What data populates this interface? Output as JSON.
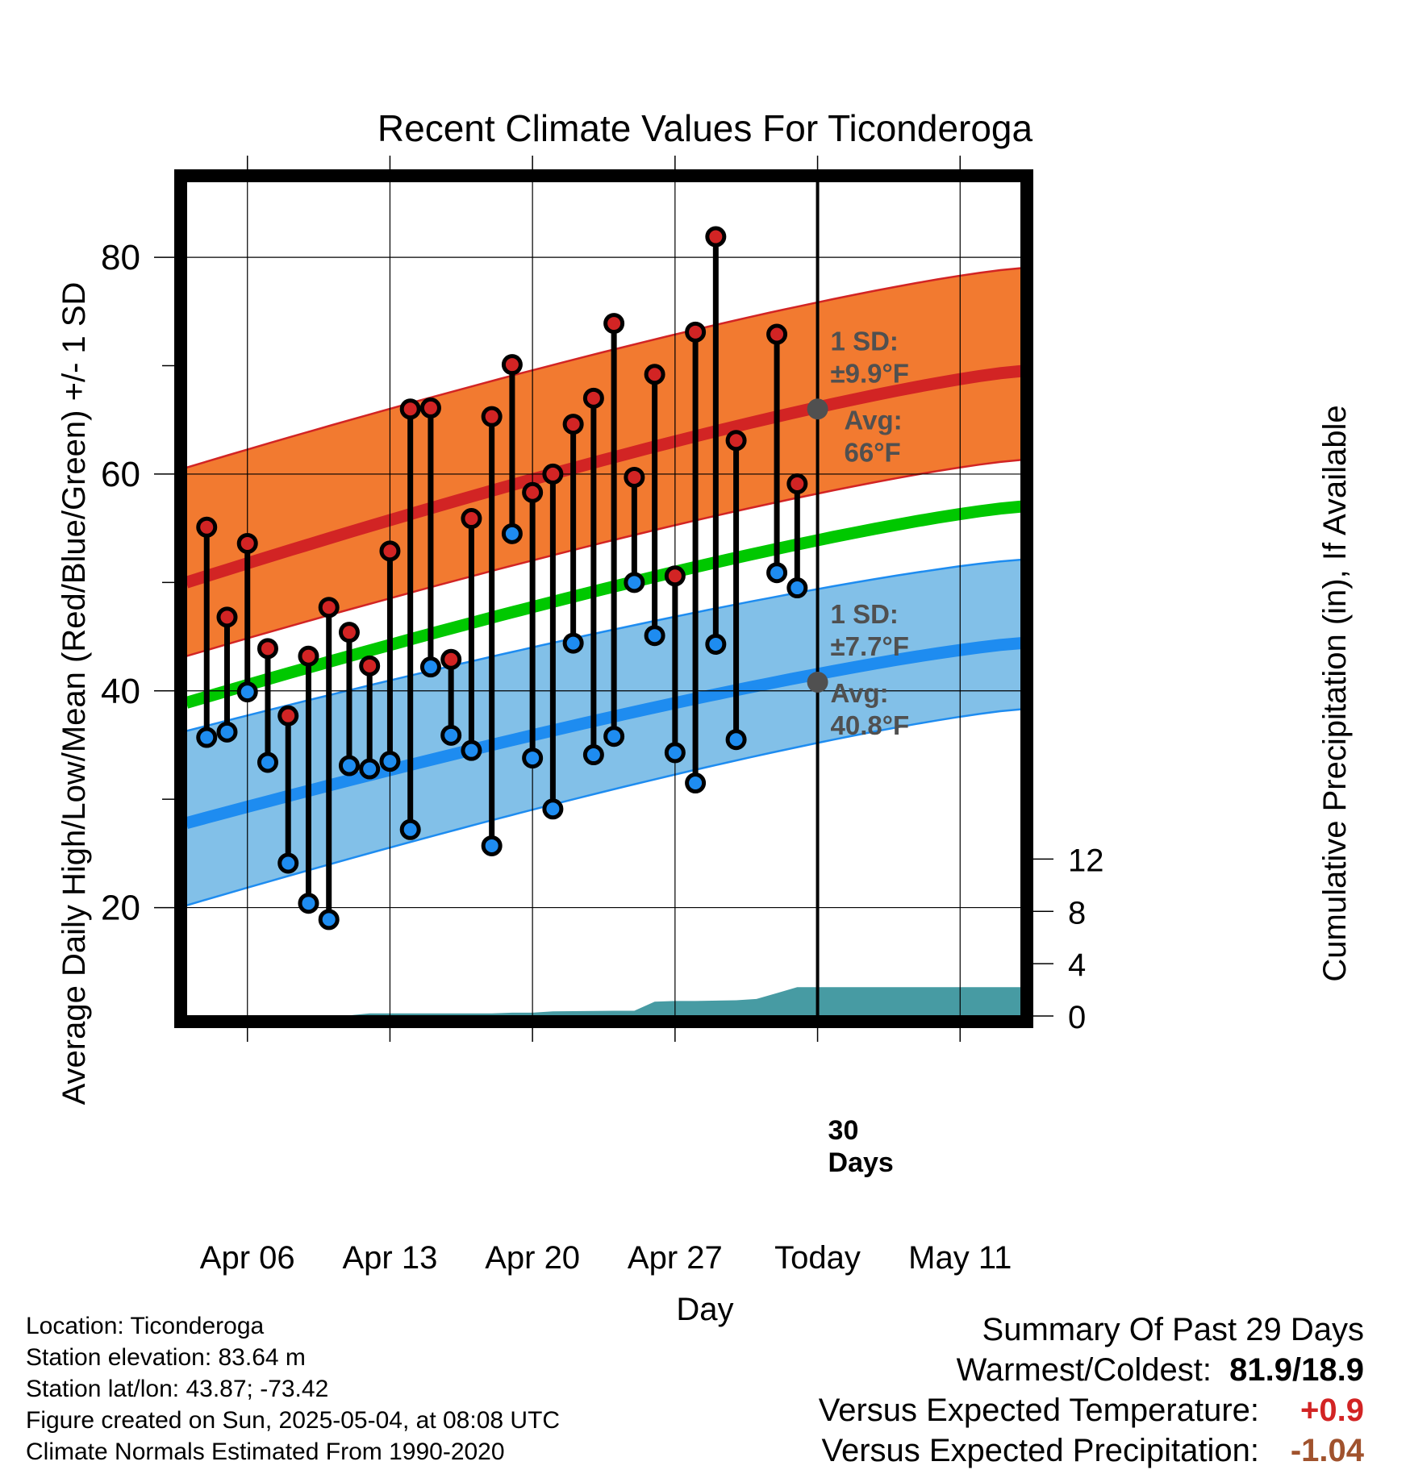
{
  "chart_data": {
    "type": "line",
    "title": "Recent Climate Values For Ticonderoga",
    "xlabel": "Day",
    "ylabel": "Average Daily High/Low/Mean (Red/Blue/Green) +/- 1 SD",
    "y2label": "Cumulative Precipitation (in), If Available",
    "ylim": [
      10,
      87
    ],
    "y2lim": [
      0,
      30
    ],
    "xlim": [
      "2025-04-03",
      "2025-05-14"
    ],
    "x_ticks": [
      "2025-04-06",
      "2025-04-13",
      "2025-04-20",
      "2025-04-27",
      "2025-05-04",
      "2025-05-11"
    ],
    "x_tick_labels": [
      "Apr 06",
      "Apr 13",
      "Apr 20",
      "Apr 27",
      "Today",
      "May 11"
    ],
    "y_ticks": [
      20,
      40,
      60,
      80
    ],
    "y_ticks_labels": [
      "20",
      "40",
      "60",
      "80"
    ],
    "y2_ticks": [
      0,
      4,
      8,
      12
    ],
    "y2_tick_labels": [
      "0",
      "4",
      "8",
      "12"
    ],
    "today": "2025-05-04",
    "grid": true,
    "normals": {
      "x": [
        "2025-04-03",
        "2025-05-14"
      ],
      "high_mean": [
        50.0,
        69.5
      ],
      "high_upper": [
        60.6,
        79.0
      ],
      "high_lower": [
        43.2,
        61.3
      ],
      "low_mean": [
        27.8,
        44.4
      ],
      "low_upper": [
        36.3,
        52.1
      ],
      "low_lower": [
        20.2,
        38.3
      ],
      "daily_mean": [
        38.9,
        57.0
      ]
    },
    "series": [
      {
        "kind": "daily_observations",
        "dates": [
          "2025-04-04",
          "2025-04-05",
          "2025-04-06",
          "2025-04-07",
          "2025-04-08",
          "2025-04-09",
          "2025-04-10",
          "2025-04-11",
          "2025-04-12",
          "2025-04-13",
          "2025-04-14",
          "2025-04-15",
          "2025-04-16",
          "2025-04-17",
          "2025-04-18",
          "2025-04-19",
          "2025-04-20",
          "2025-04-21",
          "2025-04-22",
          "2025-04-23",
          "2025-04-24",
          "2025-04-25",
          "2025-04-26",
          "2025-04-27",
          "2025-04-28",
          "2025-04-29",
          "2025-04-30",
          "2025-05-02",
          "2025-05-03"
        ],
        "high": [
          55.1,
          46.8,
          53.6,
          43.9,
          37.7,
          43.2,
          47.7,
          45.4,
          42.3,
          52.9,
          66.0,
          66.1,
          42.9,
          55.9,
          65.3,
          70.1,
          58.3,
          60.0,
          64.6,
          67.0,
          73.9,
          59.7,
          69.2,
          50.6,
          73.1,
          81.9,
          63.1,
          72.9,
          59.1
        ],
        "low": [
          35.7,
          36.2,
          39.9,
          33.4,
          24.1,
          20.4,
          18.9,
          33.1,
          32.8,
          33.5,
          27.2,
          42.2,
          35.9,
          34.5,
          25.7,
          54.5,
          33.8,
          29.1,
          44.4,
          34.1,
          35.8,
          50.0,
          45.1,
          34.3,
          31.5,
          44.3,
          35.5,
          50.9,
          49.5
        ]
      },
      {
        "kind": "cumulative_precipitation",
        "dates": [
          "2025-04-03",
          "2025-04-10",
          "2025-04-11",
          "2025-04-12",
          "2025-04-18",
          "2025-04-19",
          "2025-04-20",
          "2025-04-21",
          "2025-04-24",
          "2025-04-25",
          "2025-04-26",
          "2025-04-27",
          "2025-04-28",
          "2025-04-30",
          "2025-05-01",
          "2025-05-02",
          "2025-05-03",
          "2025-05-14"
        ],
        "values": [
          0,
          0,
          0.05,
          0.2,
          0.2,
          0.25,
          0.25,
          0.35,
          0.4,
          0.4,
          1.1,
          1.15,
          1.15,
          1.2,
          1.3,
          1.75,
          2.2,
          2.2
        ]
      }
    ],
    "annotations": {
      "high_sd_label": "1 SD:",
      "high_sd_value": "±9.9°F",
      "high_avg_label": "Avg:",
      "high_avg_value": "66°F",
      "high_avg": 66.0,
      "low_sd_label": "1 SD:",
      "low_sd_value": "±7.7°F",
      "low_avg_label": "Avg:",
      "low_avg_value": "40.8°F",
      "low_avg": 40.8,
      "precip_label_1": "30",
      "precip_label_2": "Days"
    },
    "colors": {
      "high_band": "#f27a30",
      "high_line": "#d22424",
      "low_band": "#82c0e8",
      "low_line": "#1e8cf0",
      "mean_line": "#00c800",
      "precip": "#479ba3",
      "high_dot": "#d22424",
      "low_dot": "#1e8cf0",
      "avg_dot": "#505050",
      "annotation_text": "#505050"
    }
  },
  "footer": {
    "location": "Location: Ticonderoga",
    "elevation": "Station elevation: 83.64 m",
    "latlon": "Station lat/lon: 43.87; -73.42",
    "created": "Figure created on Sun, 2025-05-04, at 08:08 UTC",
    "normals": "Climate Normals Estimated From 1990-2020"
  },
  "summary": {
    "title": "Summary Of Past 29 Days",
    "warm_cold_label": "Warmest/Coldest:",
    "warm_cold_value": "81.9/18.9",
    "temp_label": "Versus Expected Temperature:",
    "temp_value": "+0.9",
    "temp_color": "#d22424",
    "precip_label": "Versus Expected Precipitation:",
    "precip_value": "-1.04",
    "precip_color": "#a0522d"
  }
}
